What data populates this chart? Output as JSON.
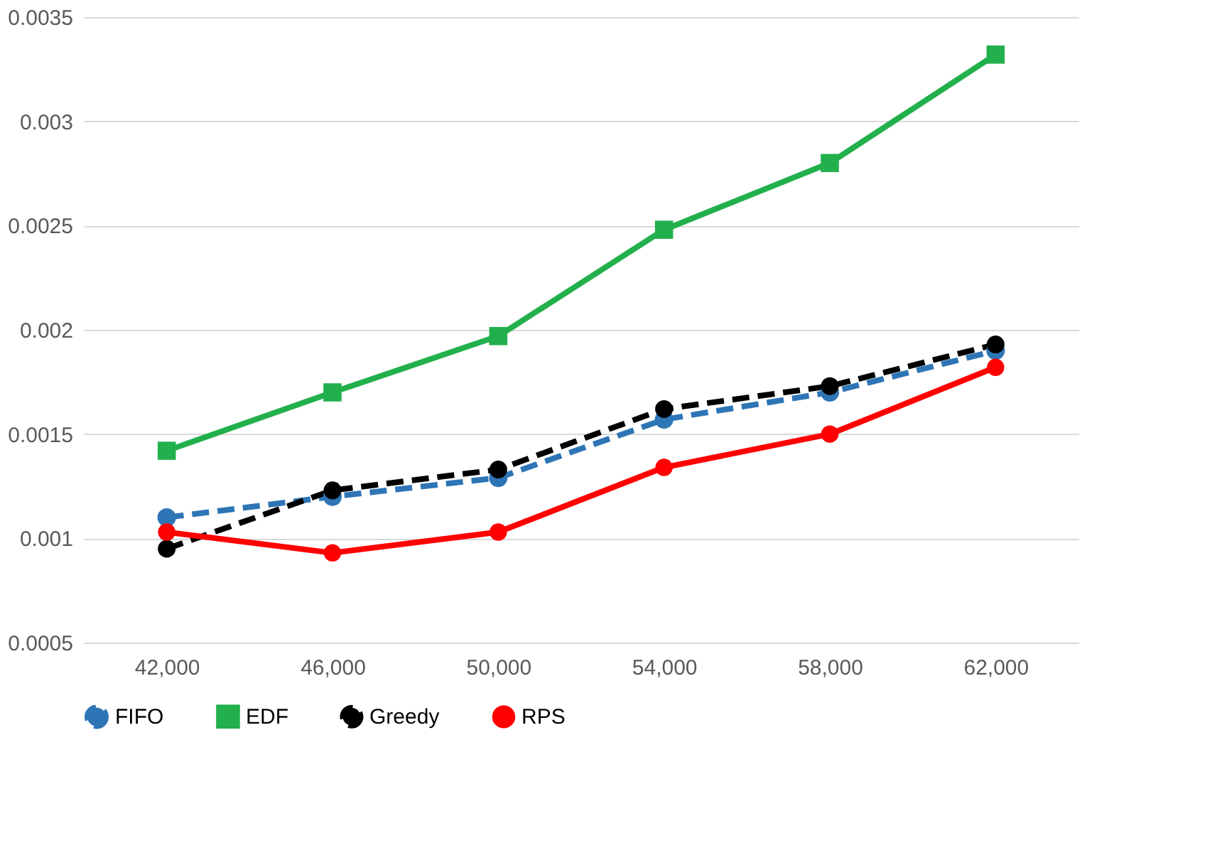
{
  "chart_data": {
    "type": "line",
    "categories": [
      "42,000",
      "46,000",
      "50,000",
      "54,000",
      "58,000",
      "62,000"
    ],
    "ylim": [
      0.0005,
      0.0035
    ],
    "yticks": [
      0.0005,
      0.001,
      0.0015,
      0.002,
      0.0025,
      0.003,
      0.0035
    ],
    "grid": "y",
    "legend": "bottom",
    "series": [
      {
        "name": "FIFO",
        "color": "#2e75b6",
        "marker": "circle",
        "line_style": "dashed",
        "values": [
          0.0011,
          0.0012,
          0.00129,
          0.00157,
          0.0017,
          0.0019
        ]
      },
      {
        "name": "EDF",
        "color": "#22b04c",
        "marker": "square",
        "line_style": "solid",
        "values": [
          0.00142,
          0.0017,
          0.00197,
          0.00248,
          0.0028,
          0.00332
        ]
      },
      {
        "name": "Greedy",
        "color": "#000000",
        "marker": "circle",
        "line_style": "dashed",
        "values": [
          0.00095,
          0.00123,
          0.00133,
          0.00162,
          0.00173,
          0.00193
        ]
      },
      {
        "name": "RPS",
        "color": "#ff0000",
        "marker": "circle",
        "line_style": "solid",
        "values": [
          0.00103,
          0.00093,
          0.00103,
          0.00134,
          0.0015,
          0.00182
        ]
      }
    ]
  }
}
